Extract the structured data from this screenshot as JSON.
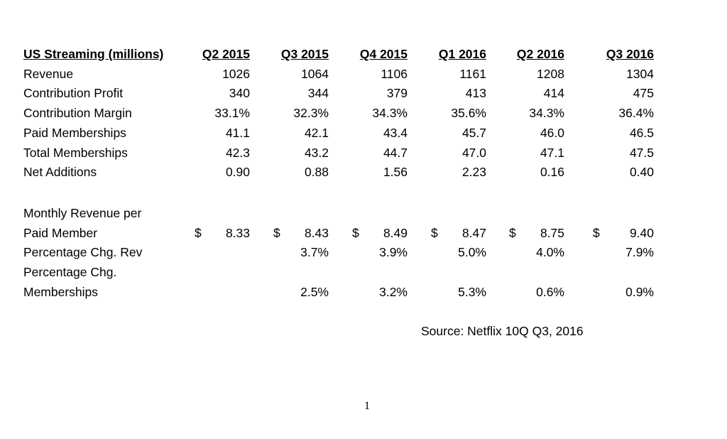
{
  "table": {
    "title": "US Streaming (millions)",
    "columns": [
      "Q2 2015",
      "Q3 2015",
      "Q4 2015",
      "Q1 2016",
      "Q2 2016",
      "Q3 2016"
    ],
    "rows": [
      {
        "label": "Revenue",
        "values": [
          "1026",
          "1064",
          "1106",
          "1161",
          "1208",
          "1304"
        ]
      },
      {
        "label": "Contribution Profit",
        "values": [
          "340",
          "344",
          "379",
          "413",
          "414",
          "475"
        ]
      },
      {
        "label": "Contribution Margin",
        "values": [
          "33.1%",
          "32.3%",
          "34.3%",
          "35.6%",
          "34.3%",
          "36.4%"
        ]
      },
      {
        "label": "Paid Memberships",
        "values": [
          "41.1",
          "42.1",
          "43.4",
          "45.7",
          "46.0",
          "46.5"
        ]
      },
      {
        "label": "Total Memberships",
        "values": [
          "42.3",
          "43.2",
          "44.7",
          "47.0",
          "47.1",
          "47.5"
        ]
      },
      {
        "label": "Net Additions",
        "values": [
          "0.90",
          "0.88",
          "1.56",
          "2.23",
          "0.16",
          "0.40"
        ]
      }
    ],
    "monthly_revenue_row": {
      "label_line1": "Monthly Revenue per",
      "label_line2": "Paid Member",
      "currency_symbol": "$",
      "values": [
        "8.33",
        "8.43",
        "8.49",
        "8.47",
        "8.75",
        "9.40"
      ]
    },
    "pct_chg_rev_row": {
      "label": "Percentage Chg. Rev",
      "values": [
        "",
        "3.7%",
        "3.9%",
        "5.0%",
        "4.0%",
        "7.9%"
      ]
    },
    "pct_chg_memberships_row": {
      "label_line1": "Percentage Chg.",
      "label_line2": "Memberships",
      "values": [
        "",
        "2.5%",
        "3.2%",
        "5.3%",
        "0.6%",
        "0.9%"
      ]
    }
  },
  "source_note": "Source: Netflix 10Q Q3, 2016",
  "page_number": "1"
}
